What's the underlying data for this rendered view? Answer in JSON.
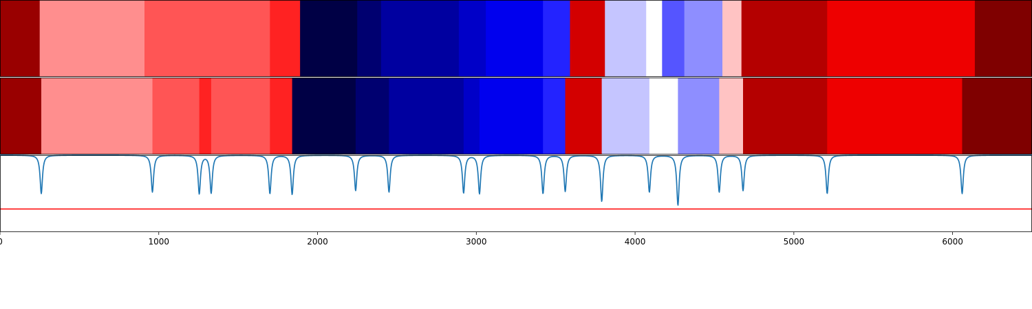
{
  "chart_data": {
    "type": "heatmap",
    "title": "",
    "xlabel": "",
    "ylabel": "",
    "xlim": [
      0,
      6500
    ],
    "xticks": [
      {
        "value": 0,
        "label": "0"
      },
      {
        "value": 1000,
        "label": "1000"
      },
      {
        "value": 2000,
        "label": "2000"
      },
      {
        "value": 3000,
        "label": "3000"
      },
      {
        "value": 4000,
        "label": "4000"
      },
      {
        "value": 5000,
        "label": "5000"
      },
      {
        "value": 6000,
        "label": "6000"
      }
    ],
    "panels": [
      {
        "name": "",
        "kind": "segments",
        "segments": [
          {
            "start": 0,
            "end": 250,
            "color": "#990000"
          },
          {
            "start": 250,
            "end": 910,
            "color": "#ff8e8e"
          },
          {
            "start": 910,
            "end": 1700,
            "color": "#ff5555"
          },
          {
            "start": 1700,
            "end": 1890,
            "color": "#ff2222"
          },
          {
            "start": 1890,
            "end": 2250,
            "color": "#000045"
          },
          {
            "start": 2250,
            "end": 2400,
            "color": "#000070"
          },
          {
            "start": 2400,
            "end": 2890,
            "color": "#0000a0"
          },
          {
            "start": 2890,
            "end": 3060,
            "color": "#0000c8"
          },
          {
            "start": 3060,
            "end": 3420,
            "color": "#0000ee"
          },
          {
            "start": 3420,
            "end": 3590,
            "color": "#2323ff"
          },
          {
            "start": 3590,
            "end": 3810,
            "color": "#d30000"
          },
          {
            "start": 3810,
            "end": 4070,
            "color": "#c5c5ff"
          },
          {
            "start": 4070,
            "end": 4170,
            "color": "#ffffff"
          },
          {
            "start": 4170,
            "end": 4310,
            "color": "#5555ff"
          },
          {
            "start": 4310,
            "end": 4550,
            "color": "#8e8eff"
          },
          {
            "start": 4550,
            "end": 4670,
            "color": "#ffc3c3"
          },
          {
            "start": 4670,
            "end": 5210,
            "color": "#b40000"
          },
          {
            "start": 5210,
            "end": 6140,
            "color": "#ee0000"
          },
          {
            "start": 6140,
            "end": 6500,
            "color": "#7f0000"
          }
        ]
      },
      {
        "name": "",
        "kind": "segments",
        "segments": [
          {
            "start": 0,
            "end": 260,
            "color": "#990000"
          },
          {
            "start": 260,
            "end": 960,
            "color": "#ff8e8e"
          },
          {
            "start": 960,
            "end": 1255,
            "color": "#ff5555"
          },
          {
            "start": 1255,
            "end": 1330,
            "color": "#ff2222"
          },
          {
            "start": 1330,
            "end": 1700,
            "color": "#ff5555"
          },
          {
            "start": 1700,
            "end": 1840,
            "color": "#ff2222"
          },
          {
            "start": 1840,
            "end": 2240,
            "color": "#000045"
          },
          {
            "start": 2240,
            "end": 2450,
            "color": "#000070"
          },
          {
            "start": 2450,
            "end": 2920,
            "color": "#0000a0"
          },
          {
            "start": 2920,
            "end": 3020,
            "color": "#0000c8"
          },
          {
            "start": 3020,
            "end": 3420,
            "color": "#0000ee"
          },
          {
            "start": 3420,
            "end": 3560,
            "color": "#2323ff"
          },
          {
            "start": 3560,
            "end": 3790,
            "color": "#d30000"
          },
          {
            "start": 3790,
            "end": 4090,
            "color": "#c5c5ff"
          },
          {
            "start": 4090,
            "end": 4270,
            "color": "#ffffff"
          },
          {
            "start": 4270,
            "end": 4530,
            "color": "#8e8eff"
          },
          {
            "start": 4530,
            "end": 4680,
            "color": "#ffc3c3"
          },
          {
            "start": 4680,
            "end": 5210,
            "color": "#b40000"
          },
          {
            "start": 5210,
            "end": 6060,
            "color": "#ee0000"
          },
          {
            "start": 6060,
            "end": 6500,
            "color": "#7f0000"
          }
        ]
      },
      {
        "name": "",
        "kind": "signal",
        "ylim": [
          -1.0,
          0.0
        ],
        "line_color": "#1f77b4",
        "threshold": -0.7,
        "threshold_color": "#ff0000",
        "dips": [
          {
            "x": 260,
            "depth": -0.5
          },
          {
            "x": 960,
            "depth": -0.48
          },
          {
            "x": 1255,
            "depth": -0.5
          },
          {
            "x": 1330,
            "depth": -0.49
          },
          {
            "x": 1700,
            "depth": -0.5
          },
          {
            "x": 1840,
            "depth": -0.51
          },
          {
            "x": 2240,
            "depth": -0.46
          },
          {
            "x": 2450,
            "depth": -0.48
          },
          {
            "x": 2920,
            "depth": -0.49
          },
          {
            "x": 3020,
            "depth": -0.5
          },
          {
            "x": 3420,
            "depth": -0.5
          },
          {
            "x": 3560,
            "depth": -0.47
          },
          {
            "x": 3790,
            "depth": -0.6
          },
          {
            "x": 4090,
            "depth": -0.48
          },
          {
            "x": 4270,
            "depth": -0.65
          },
          {
            "x": 4530,
            "depth": -0.48
          },
          {
            "x": 4680,
            "depth": -0.46
          },
          {
            "x": 5210,
            "depth": -0.5
          },
          {
            "x": 6060,
            "depth": -0.5
          }
        ]
      }
    ]
  }
}
